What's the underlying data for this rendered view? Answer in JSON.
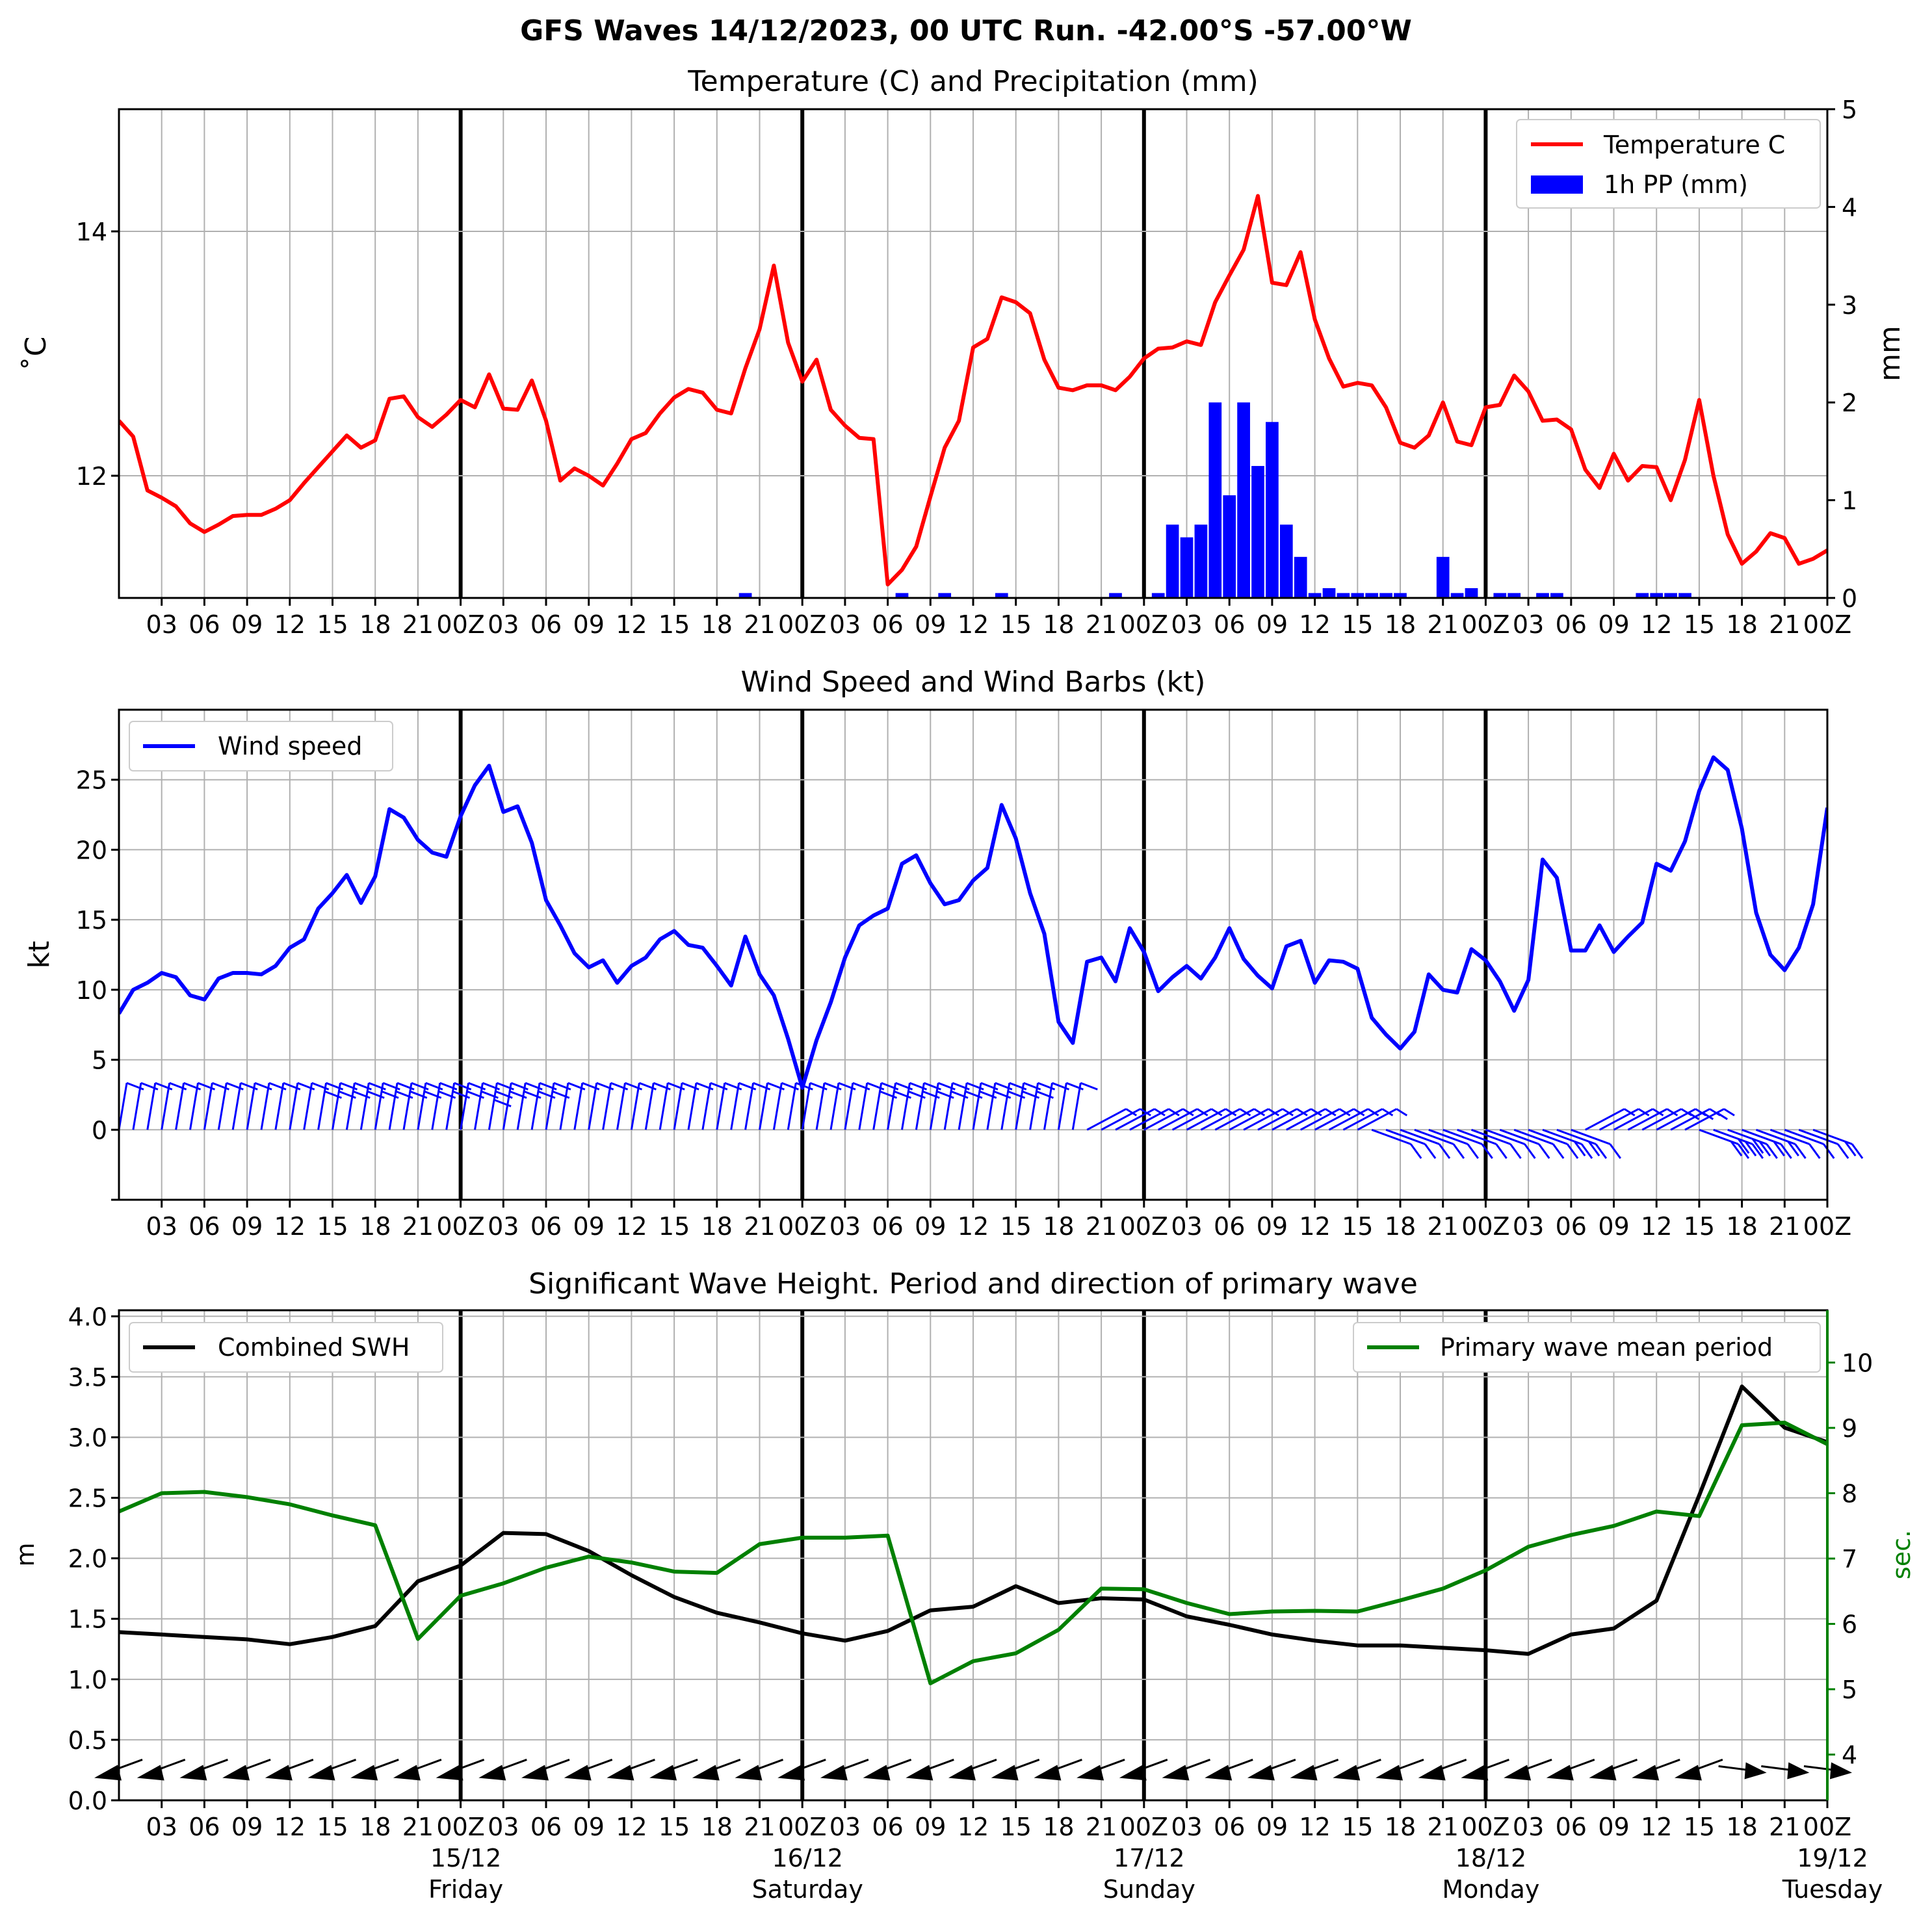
{
  "suptitle": "GFS Waves 14/12/2023, 00 UTC Run. -42.00°S -57.00°W",
  "x_ticks": [
    "03",
    "06",
    "09",
    "12",
    "15",
    "18",
    "21",
    "00Z",
    "03",
    "06",
    "09",
    "12",
    "15",
    "18",
    "21",
    "00Z",
    "03",
    "06",
    "09",
    "12",
    "15",
    "18",
    "21",
    "00Z",
    "03",
    "06",
    "09",
    "12",
    "15",
    "18",
    "21",
    "00Z",
    "03",
    "06",
    "09",
    "12",
    "15",
    "18",
    "21",
    "00Z"
  ],
  "day_labels": [
    {
      "hour": 24,
      "date": "15/12",
      "day": "Friday"
    },
    {
      "hour": 48,
      "date": "16/12",
      "day": "Saturday"
    },
    {
      "hour": 72,
      "date": "17/12",
      "day": "Sunday"
    },
    {
      "hour": 96,
      "date": "18/12",
      "day": "Monday"
    },
    {
      "hour": 120,
      "date": "19/12",
      "day": "Tuesday"
    }
  ],
  "colors": {
    "temperature": "#ff0000",
    "precip": "#0000ff",
    "wind": "#0000ff",
    "swh": "#000000",
    "period": "#008000",
    "grid": "#b0b0b0"
  },
  "chart_data": [
    {
      "type": "line",
      "title": "Temperature (C) and Precipitation (mm)",
      "ylabel": "˚C",
      "ylabel_right": "mm",
      "xlim": [
        0,
        120
      ],
      "ylim": [
        11.0,
        15.0
      ],
      "ylim_right": [
        0,
        5
      ],
      "yticks": [
        12,
        14
      ],
      "yticks_right": [
        0,
        1,
        2,
        3,
        4,
        5
      ],
      "legend": "top-right",
      "series": [
        {
          "name": "Temperature C",
          "x": [
            0,
            1,
            2,
            3,
            4,
            5,
            6,
            7,
            8,
            9,
            10,
            11,
            12,
            13,
            14,
            15,
            16,
            17,
            18,
            19,
            20,
            21,
            22,
            23,
            24,
            25,
            26,
            27,
            28,
            29,
            30,
            31,
            32,
            33,
            34,
            35,
            36,
            37,
            38,
            39,
            40,
            41,
            42,
            43,
            44,
            45,
            46,
            47,
            48,
            49,
            50,
            51,
            52,
            53,
            54,
            55,
            56,
            57,
            58,
            59,
            60,
            61,
            62,
            63,
            64,
            65,
            66,
            67,
            68,
            69,
            70,
            71,
            72,
            73,
            74,
            75,
            76,
            77,
            78,
            79,
            80,
            81,
            82,
            83,
            84,
            85,
            86,
            87,
            88,
            89,
            90,
            91,
            92,
            93,
            94,
            95,
            96,
            97,
            98,
            99,
            100,
            101,
            102,
            103,
            104,
            105,
            106,
            107,
            108,
            109,
            110,
            111,
            112,
            113,
            114,
            115,
            116,
            117,
            118,
            119,
            120
          ],
          "values": [
            12.45,
            12.32,
            11.88,
            11.82,
            11.75,
            11.61,
            11.54,
            11.6,
            11.67,
            11.68,
            11.68,
            11.73,
            11.8,
            11.94,
            12.07,
            12.2,
            12.33,
            12.23,
            12.29,
            12.63,
            12.65,
            12.48,
            12.4,
            12.5,
            12.62,
            12.56,
            12.83,
            12.55,
            12.54,
            12.78,
            12.45,
            11.96,
            12.06,
            12.0,
            11.92,
            12.1,
            12.3,
            12.35,
            12.51,
            12.64,
            12.71,
            12.68,
            12.54,
            12.51,
            12.88,
            13.2,
            13.72,
            13.09,
            12.77,
            12.95,
            12.54,
            12.41,
            12.31,
            12.3,
            11.11,
            11.23,
            11.42,
            11.83,
            12.23,
            12.45,
            13.05,
            13.12,
            13.46,
            13.42,
            13.33,
            12.95,
            12.72,
            12.7,
            12.74,
            12.74,
            12.7,
            12.81,
            12.96,
            13.04,
            13.05,
            13.1,
            13.07,
            13.42,
            13.64,
            13.85,
            14.29,
            13.58,
            13.56,
            13.83,
            13.28,
            12.96,
            12.73,
            12.76,
            12.74,
            12.56,
            12.27,
            12.23,
            12.33,
            12.6,
            12.28,
            12.25,
            12.56,
            12.58,
            12.82,
            12.69,
            12.45,
            12.46,
            12.38,
            12.05,
            11.9,
            12.18,
            11.96,
            12.08,
            12.07,
            11.8,
            12.13,
            12.62,
            12.0,
            11.52,
            11.28,
            11.38,
            11.53,
            11.49,
            11.28,
            11.32,
            11.39
          ]
        },
        {
          "name": "1h PP (mm)",
          "axis": "right",
          "kind": "bar",
          "width": 0.9,
          "x": [
            44,
            55,
            58,
            62,
            70,
            73,
            74,
            75,
            76,
            77,
            78,
            79,
            80,
            81,
            82,
            83,
            84,
            85,
            86,
            87,
            88,
            89,
            90,
            93,
            94,
            95,
            97,
            98,
            100,
            101,
            107,
            108,
            109,
            110
          ],
          "values": [
            0.05,
            0.05,
            0.05,
            0.05,
            0.05,
            0.05,
            0.75,
            0.62,
            0.75,
            2.0,
            1.05,
            2.0,
            1.35,
            1.8,
            0.75,
            0.42,
            0.05,
            0.1,
            0.05,
            0.05,
            0.05,
            0.05,
            0.05,
            0.42,
            0.05,
            0.1,
            0.05,
            0.05,
            0.05,
            0.05,
            0.05,
            0.05,
            0.05,
            0.05
          ]
        }
      ]
    },
    {
      "type": "line",
      "title": "Wind Speed and Wind Barbs (kt)",
      "ylabel": "kt",
      "xlim": [
        0,
        120
      ],
      "ylim": [
        -5,
        30
      ],
      "yticks": [
        0,
        5,
        10,
        15,
        20,
        25
      ],
      "legend": "top-left",
      "series": [
        {
          "name": "Wind speed",
          "x": [
            0,
            1,
            2,
            3,
            4,
            5,
            6,
            7,
            8,
            9,
            10,
            11,
            12,
            13,
            14,
            15,
            16,
            17,
            18,
            19,
            20,
            21,
            22,
            23,
            24,
            25,
            26,
            27,
            28,
            29,
            30,
            31,
            32,
            33,
            34,
            35,
            36,
            37,
            38,
            39,
            40,
            41,
            42,
            43,
            44,
            45,
            46,
            47,
            48,
            49,
            50,
            51,
            52,
            53,
            54,
            55,
            56,
            57,
            58,
            59,
            60,
            61,
            62,
            63,
            64,
            65,
            66,
            67,
            68,
            69,
            70,
            71,
            72,
            73,
            74,
            75,
            76,
            77,
            78,
            79,
            80,
            81,
            82,
            83,
            84,
            85,
            86,
            87,
            88,
            89,
            90,
            91,
            92,
            93,
            94,
            95,
            96,
            97,
            98,
            99,
            100,
            101,
            102,
            103,
            104,
            105,
            106,
            107,
            108,
            109,
            110,
            111,
            112,
            113,
            114,
            115,
            116,
            117,
            118,
            119,
            120
          ],
          "values": [
            8.3,
            10.0,
            10.5,
            11.2,
            10.9,
            9.6,
            9.3,
            10.8,
            11.2,
            11.2,
            11.1,
            11.7,
            13.0,
            13.6,
            15.8,
            16.9,
            18.2,
            16.2,
            18.1,
            22.9,
            22.3,
            20.7,
            19.8,
            19.5,
            22.4,
            24.6,
            26.0,
            22.7,
            23.1,
            20.5,
            16.4,
            14.6,
            12.6,
            11.6,
            12.1,
            10.5,
            11.7,
            12.3,
            13.6,
            14.2,
            13.2,
            13.0,
            11.7,
            10.3,
            13.8,
            11.1,
            9.6,
            6.5,
            3.0,
            6.4,
            9.1,
            12.3,
            14.6,
            15.3,
            15.8,
            19.0,
            19.6,
            17.6,
            16.1,
            16.4,
            17.8,
            18.7,
            23.2,
            20.8,
            16.9,
            14.0,
            7.7,
            6.2,
            12.0,
            12.3,
            10.6,
            14.4,
            12.7,
            9.9,
            10.9,
            11.7,
            10.8,
            12.3,
            14.4,
            12.2,
            11.0,
            10.1,
            13.1,
            13.5,
            10.5,
            12.1,
            12.0,
            11.5,
            8.0,
            6.8,
            5.8,
            7.0,
            11.1,
            10.0,
            9.8,
            12.9,
            12.1,
            10.6,
            8.5,
            10.7,
            19.3,
            18.0,
            12.8,
            12.8,
            14.6,
            12.7,
            13.8,
            14.8,
            19.0,
            18.5,
            20.6,
            24.2,
            26.6,
            25.7,
            21.5,
            15.5,
            12.5,
            11.4,
            13.0,
            16.1,
            23.0
          ]
        }
      ],
      "barbs": {
        "x_step": 1,
        "x_start": 0,
        "count": 120
      }
    },
    {
      "type": "line",
      "title": "Significant Wave Height. Period and direction of primary wave",
      "ylabel": "m",
      "ylabel_right": "sec.",
      "xlim": [
        0,
        120
      ],
      "ylim": [
        0.0,
        4.05
      ],
      "ylim_right": [
        3.3,
        10.8
      ],
      "yticks": [
        0.0,
        0.5,
        1.0,
        1.5,
        2.0,
        2.5,
        3.0,
        3.5,
        4.0
      ],
      "yticks_right": [
        4,
        5,
        6,
        7,
        8,
        9,
        10
      ],
      "legend_left": "top-left",
      "legend_right": "top-right",
      "series": [
        {
          "name": "Combined SWH",
          "x": [
            0,
            3,
            6,
            9,
            12,
            15,
            18,
            21,
            24,
            27,
            30,
            33,
            36,
            39,
            42,
            45,
            48,
            51,
            54,
            57,
            60,
            63,
            66,
            69,
            72,
            75,
            78,
            81,
            84,
            87,
            90,
            93,
            96,
            99,
            102,
            105,
            108,
            111,
            114,
            117,
            120
          ],
          "values": [
            1.39,
            1.37,
            1.35,
            1.33,
            1.29,
            1.35,
            1.44,
            1.81,
            1.94,
            2.21,
            2.2,
            2.06,
            1.86,
            1.68,
            1.55,
            1.47,
            1.38,
            1.32,
            1.4,
            1.57,
            1.6,
            1.77,
            1.63,
            1.67,
            1.66,
            1.52,
            1.45,
            1.37,
            1.32,
            1.28,
            1.28,
            1.26,
            1.24,
            1.21,
            1.37,
            1.42,
            1.65,
            2.52,
            3.42,
            3.08,
            2.96
          ]
        },
        {
          "name": "Primary wave mean period",
          "axis": "right",
          "x": [
            0,
            3,
            6,
            9,
            12,
            15,
            18,
            21,
            24,
            27,
            30,
            33,
            36,
            39,
            42,
            45,
            48,
            51,
            54,
            57,
            60,
            63,
            66,
            69,
            72,
            75,
            78,
            81,
            84,
            87,
            90,
            93,
            96,
            99,
            102,
            105,
            108,
            111,
            114,
            117,
            120
          ],
          "values": [
            7.72,
            8.0,
            8.02,
            7.94,
            7.83,
            7.66,
            7.51,
            5.77,
            6.43,
            6.62,
            6.86,
            7.03,
            6.94,
            6.8,
            6.78,
            7.22,
            7.32,
            7.32,
            7.35,
            5.09,
            5.43,
            5.55,
            5.91,
            6.54,
            6.53,
            6.32,
            6.15,
            6.19,
            6.2,
            6.19,
            6.36,
            6.54,
            6.82,
            7.18,
            7.36,
            7.5,
            7.72,
            7.65,
            9.04,
            9.08,
            8.75
          ]
        }
      ],
      "arrows": {
        "x": [
          0,
          3,
          6,
          9,
          12,
          15,
          18,
          21,
          24,
          27,
          30,
          33,
          36,
          39,
          42,
          45,
          48,
          51,
          54,
          57,
          60,
          63,
          66,
          69,
          72,
          75,
          78,
          81,
          84,
          87,
          90,
          93,
          96,
          99,
          102,
          105,
          108,
          111,
          114,
          117,
          120
        ],
        "y": 0.25
      }
    }
  ]
}
